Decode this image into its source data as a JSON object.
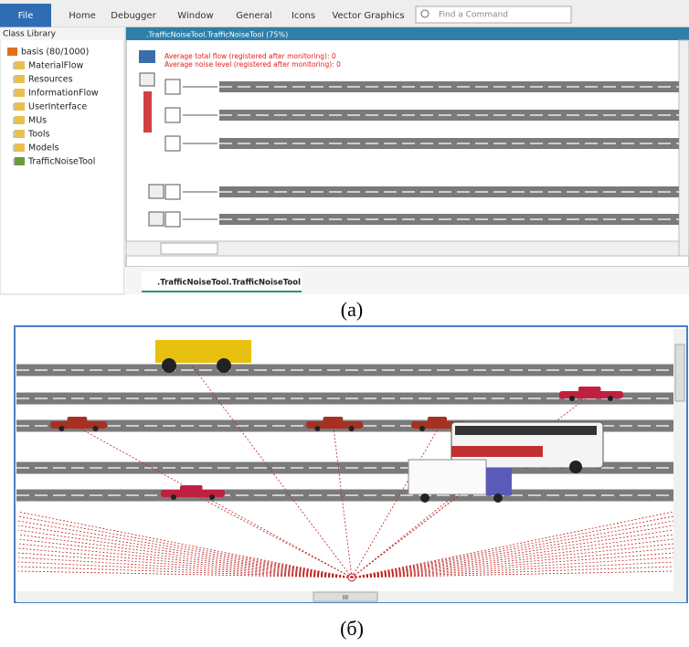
{
  "ribbon": {
    "tabs": [
      "File",
      "Home",
      "Debugger",
      "Window",
      "General",
      "Icons",
      "Vector Graphics"
    ],
    "search": "Find a Command"
  },
  "class_library": {
    "title": "Class Library",
    "items": [
      "basis (80/1000)",
      "MaterialFlow",
      "Resources",
      "InformationFlow",
      "UserInterface",
      "MUs",
      "Tools",
      "Models",
      "TrafficNoiseTool"
    ]
  },
  "model_window": {
    "title": ".TrafficNoiseTool.TrafficNoiseTool  (75%)",
    "stats": [
      "Average total flow (registered after monitoring): 0",
      "Average noise level (registered after monitoring): 0"
    ]
  },
  "tab": ".TrafficNoiseTool.TrafficNoiseTool",
  "scrollbar_grip": "III",
  "captions": [
    "(a)",
    "(б)"
  ]
}
